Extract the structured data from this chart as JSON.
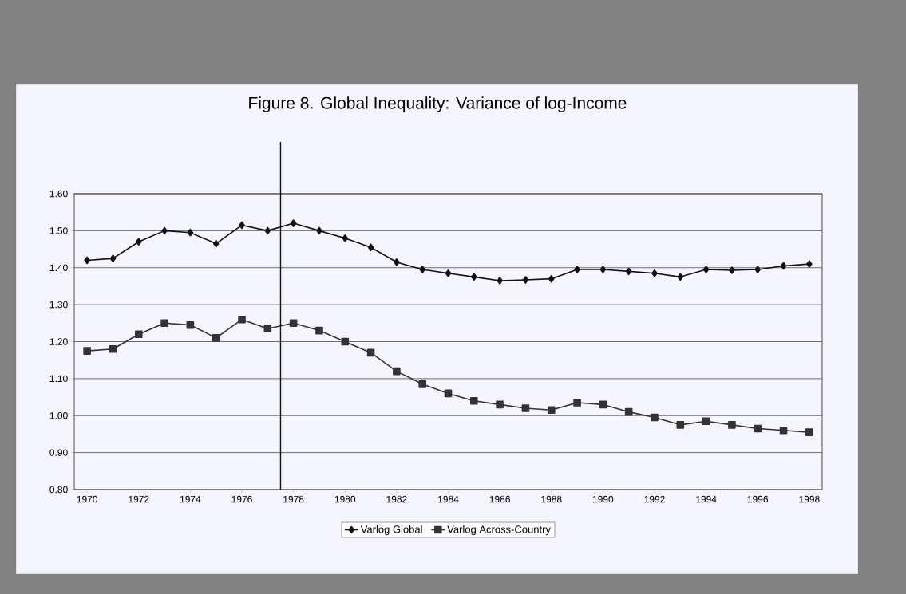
{
  "chart_data": {
    "type": "line",
    "title": "Figure 8. Global Inequality: Variance of log-Income",
    "x": [
      1970,
      1971,
      1972,
      1973,
      1974,
      1975,
      1976,
      1977,
      1978,
      1979,
      1980,
      1981,
      1982,
      1983,
      1984,
      1985,
      1986,
      1987,
      1988,
      1989,
      1990,
      1991,
      1992,
      1993,
      1994,
      1995,
      1996,
      1997,
      1998
    ],
    "series": [
      {
        "name": "Varlog Global",
        "color": "#111111",
        "marker": "diamond",
        "values": [
          1.42,
          1.425,
          1.47,
          1.5,
          1.495,
          1.465,
          1.515,
          1.5,
          1.52,
          1.5,
          1.48,
          1.455,
          1.415,
          1.395,
          1.385,
          1.375,
          1.365,
          1.367,
          1.37,
          1.395,
          1.395,
          1.39,
          1.385,
          1.375,
          1.395,
          1.393,
          1.395,
          1.405,
          1.41
        ]
      },
      {
        "name": "Varlog Across-Country",
        "color": "#333333",
        "marker": "square",
        "values": [
          1.175,
          1.18,
          1.22,
          1.25,
          1.245,
          1.21,
          1.26,
          1.235,
          1.25,
          1.23,
          1.2,
          1.17,
          1.12,
          1.085,
          1.06,
          1.04,
          1.03,
          1.02,
          1.015,
          1.035,
          1.03,
          1.01,
          0.995,
          0.975,
          0.985,
          0.975,
          0.965,
          0.96,
          0.955
        ]
      }
    ],
    "xlim": [
      1969.5,
      1998.5
    ],
    "xticks": [
      1970,
      1972,
      1974,
      1976,
      1978,
      1980,
      1982,
      1984,
      1986,
      1988,
      1990,
      1992,
      1994,
      1996,
      1998
    ],
    "ylim": [
      0.8,
      1.6
    ],
    "yticks": [
      {
        "value": 0.8,
        "label": "0.80"
      },
      {
        "value": 0.9,
        "label": "0.90"
      },
      {
        "value": 1.0,
        "label": "1.00"
      },
      {
        "value": 1.1,
        "label": "1.10"
      },
      {
        "value": 1.2,
        "label": "1.20"
      },
      {
        "value": 1.3,
        "label": "1.30"
      },
      {
        "value": 1.4,
        "label": "1.40"
      },
      {
        "value": 1.5,
        "label": "1.50"
      },
      {
        "value": 1.6,
        "label": "1.60"
      }
    ],
    "ref_lines": [
      {
        "axis": "x",
        "value": 1977.5,
        "color": "#111111"
      }
    ],
    "grid": "y",
    "legend": "bottom"
  }
}
